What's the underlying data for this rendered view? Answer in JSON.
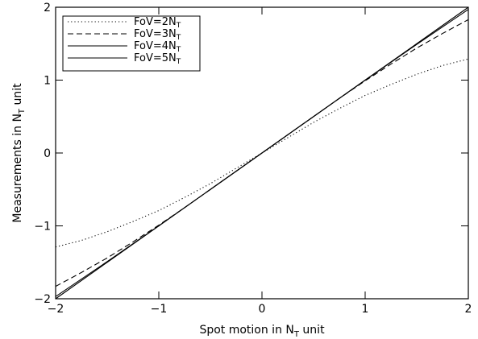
{
  "chart_data": {
    "type": "line",
    "title": "",
    "xlabel": "Spot motion in N",
    "xlabel_sub": "T",
    "xlabel_suffix": " unit",
    "ylabel": "Measurements in N",
    "ylabel_sub": "T",
    "ylabel_suffix": " unit",
    "xlim": [
      -2,
      2
    ],
    "ylim": [
      -2,
      2
    ],
    "xticks": [
      -2,
      -1,
      0,
      1,
      2
    ],
    "yticks": [
      -2,
      -1,
      0,
      1,
      2
    ],
    "tick_labels": [
      "−2",
      "−1",
      "0",
      "1",
      "2"
    ],
    "grid": false,
    "legend_position": "top-left",
    "series": [
      {
        "name": "FoV=2N",
        "name_sub": "T",
        "dash": "dotted",
        "color": "#000000",
        "x": [
          -2,
          -1.75,
          -1.5,
          -1.25,
          -1,
          -0.75,
          -0.5,
          -0.25,
          0,
          0.25,
          0.5,
          0.75,
          1,
          1.25,
          1.5,
          1.75,
          2
        ],
        "y": [
          -1.29,
          -1.2,
          -1.08,
          -0.94,
          -0.79,
          -0.61,
          -0.42,
          -0.21,
          0,
          0.21,
          0.42,
          0.61,
          0.79,
          0.94,
          1.08,
          1.2,
          1.29
        ]
      },
      {
        "name": "FoV=3N",
        "name_sub": "T",
        "dash": "dashed",
        "color": "#000000",
        "x": [
          -2,
          -1.75,
          -1.5,
          -1.25,
          -1,
          -0.75,
          -0.5,
          -0.25,
          0,
          0.25,
          0.5,
          0.75,
          1,
          1.25,
          1.5,
          1.75,
          2
        ],
        "y": [
          -1.83,
          -1.64,
          -1.44,
          -1.22,
          -0.99,
          -0.75,
          -0.5,
          -0.25,
          0,
          0.25,
          0.5,
          0.75,
          0.99,
          1.22,
          1.44,
          1.64,
          1.83
        ]
      },
      {
        "name": "FoV=4N",
        "name_sub": "T",
        "dash": "solid",
        "color": "#000000",
        "x": [
          -2,
          -1.5,
          -1,
          -0.5,
          0,
          0.5,
          1,
          1.5,
          2
        ],
        "y": [
          -1.97,
          -1.49,
          -1.0,
          -0.5,
          0,
          0.5,
          1.0,
          1.49,
          1.97
        ]
      },
      {
        "name": "FoV=5N",
        "name_sub": "T",
        "dash": "solid",
        "color": "#000000",
        "x": [
          -2,
          -1.5,
          -1,
          -0.5,
          0,
          0.5,
          1,
          1.5,
          2
        ],
        "y": [
          -2.0,
          -1.5,
          -1.0,
          -0.5,
          0,
          0.5,
          1.0,
          1.5,
          2.0
        ]
      }
    ]
  }
}
